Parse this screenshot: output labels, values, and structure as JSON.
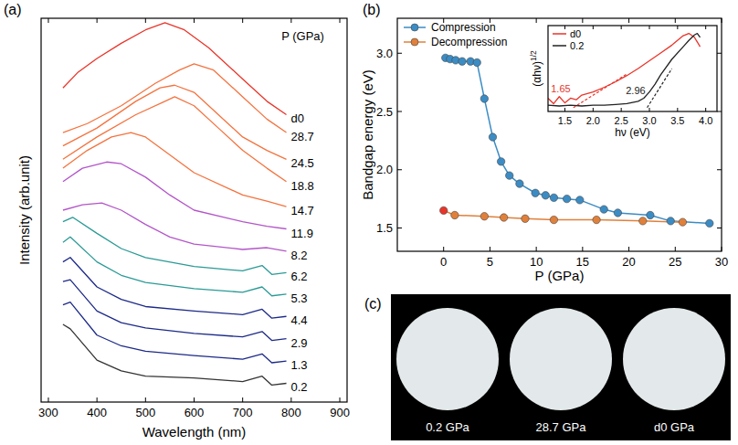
{
  "chart_data": [
    {
      "type": "line",
      "title": "(a)",
      "xlabel": "Wavelength (nm)",
      "ylabel": "Intensity (arb.unit)",
      "xlim": [
        285,
        915
      ],
      "xticks": [
        300,
        400,
        500,
        600,
        700,
        800,
        900
      ],
      "ylim": [
        0,
        43
      ],
      "tick_labels": "x",
      "annotations": [
        {
          "text": "P (GPa)",
          "x": 780,
          "y": 40.5
        }
      ],
      "series": [
        {
          "name": "0.2",
          "color": "#333333",
          "x": [
            330,
            345,
            400,
            450,
            500,
            600,
            700,
            740,
            760,
            790
          ],
          "values": [
            8.7,
            8.2,
            4.7,
            3.5,
            2.9,
            2.7,
            2.3,
            2.9,
            1.9,
            2.1
          ]
        },
        {
          "name": "1.3",
          "color": "#1c2a88",
          "x": [
            330,
            345,
            400,
            450,
            500,
            600,
            700,
            740,
            760,
            790
          ],
          "values": [
            10.9,
            11.2,
            7.5,
            6.3,
            5.7,
            5.2,
            4.8,
            5.4,
            4.4,
            4.6
          ]
        },
        {
          "name": "2.9",
          "color": "#1c2a88",
          "x": [
            330,
            345,
            400,
            450,
            500,
            600,
            700,
            740,
            760,
            790
          ],
          "values": [
            13.5,
            13.7,
            10.2,
            8.9,
            8.3,
            7.7,
            7.3,
            7.9,
            6.9,
            7.1
          ]
        },
        {
          "name": "4.4",
          "color": "#1c2a88",
          "x": [
            330,
            345,
            400,
            450,
            500,
            600,
            700,
            740,
            760,
            790
          ],
          "values": [
            15.7,
            16.2,
            12.9,
            11.5,
            10.7,
            10.2,
            9.8,
            10.4,
            9.4,
            9.6
          ]
        },
        {
          "name": "5.3",
          "color": "#2a9a96",
          "x": [
            330,
            345,
            400,
            450,
            500,
            600,
            700,
            740,
            760,
            790
          ],
          "values": [
            17.9,
            18.5,
            15.7,
            14.2,
            13.4,
            12.7,
            12.3,
            12.9,
            11.9,
            12.1
          ]
        },
        {
          "name": "6.2",
          "color": "#2a9a96",
          "x": [
            330,
            350,
            400,
            450,
            500,
            600,
            700,
            740,
            760,
            790
          ],
          "values": [
            20.2,
            20.7,
            18.9,
            17.2,
            16.2,
            15.2,
            14.7,
            15.3,
            14.3,
            14.5
          ]
        },
        {
          "name": "8.2",
          "color": "#b355c9",
          "x": [
            330,
            370,
            410,
            450,
            500,
            550,
            600,
            700,
            750,
            790
          ],
          "values": [
            21.5,
            22.1,
            22.3,
            21.5,
            19.9,
            18.5,
            17.7,
            17.1,
            17.3,
            16.9
          ]
        },
        {
          "name": "11.9",
          "color": "#b355c9",
          "x": [
            330,
            370,
            420,
            450,
            500,
            550,
            600,
            700,
            750,
            790
          ],
          "values": [
            24.7,
            26.2,
            26.9,
            26.7,
            25.2,
            23.2,
            21.5,
            20.2,
            19.7,
            19.4
          ]
        },
        {
          "name": "14.7",
          "color": "#f4733f",
          "x": [
            330,
            380,
            430,
            470,
            500,
            550,
            600,
            700,
            750,
            790
          ],
          "values": [
            26.2,
            28.2,
            29.7,
            30.2,
            29.7,
            27.7,
            25.7,
            23.2,
            22.5,
            21.9
          ]
        },
        {
          "name": "18.8",
          "color": "#f4733f",
          "x": [
            330,
            400,
            480,
            540,
            560,
            600,
            650,
            700,
            750,
            790
          ],
          "values": [
            27.2,
            29.7,
            32.2,
            33.7,
            34.2,
            33.2,
            30.7,
            28.2,
            26.2,
            24.7
          ]
        },
        {
          "name": "24.5",
          "color": "#f4733f",
          "x": [
            330,
            400,
            480,
            530,
            560,
            600,
            650,
            700,
            750,
            790
          ],
          "values": [
            28.7,
            30.7,
            33.7,
            35.2,
            35.5,
            34.7,
            32.2,
            29.7,
            28.2,
            27.2
          ]
        },
        {
          "name": "28.7",
          "color": "#f4733f",
          "x": [
            330,
            380,
            450,
            520,
            570,
            600,
            640,
            700,
            750,
            790
          ],
          "values": [
            30.2,
            31.2,
            33.2,
            35.7,
            37.2,
            37.9,
            37.2,
            34.2,
            31.7,
            30.2
          ]
        },
        {
          "name": "d0",
          "color": "#e8352a",
          "x": [
            330,
            360,
            400,
            450,
            500,
            540,
            580,
            630,
            700,
            750,
            790
          ],
          "values": [
            35.2,
            36.9,
            38.5,
            40.2,
            41.7,
            42.5,
            41.7,
            39.7,
            36.2,
            33.7,
            32.2
          ]
        }
      ]
    },
    {
      "type": "line",
      "title": "(b)",
      "xlabel": "P (GPa)",
      "ylabel": "Bandgap energy (eV)",
      "xlim": [
        -5,
        30
      ],
      "xticks": [
        0,
        5,
        10,
        15,
        20,
        25,
        30
      ],
      "ylim": [
        1.3,
        3.3
      ],
      "yticks": [
        1.5,
        {
          "value": 2,
          "label": "2.0"
        },
        2.5,
        {
          "value": 3,
          "label": "3.0"
        }
      ],
      "legend": "top-left",
      "marker": "circle",
      "series": [
        {
          "name": "Compression",
          "color": "#3b8cc4",
          "x": [
            0.2,
            0.7,
            1.3,
            2.0,
            2.9,
            3.6,
            4.4,
            5.3,
            6.2,
            7.1,
            8.2,
            9.9,
            11.0,
            11.9,
            13.3,
            14.7,
            17.3,
            18.8,
            22.3,
            24.5,
            28.7
          ],
          "values": [
            2.96,
            2.95,
            2.94,
            2.93,
            2.93,
            2.92,
            2.61,
            2.28,
            2.07,
            1.95,
            1.88,
            1.8,
            1.78,
            1.76,
            1.75,
            1.74,
            1.66,
            1.63,
            1.61,
            1.56,
            1.54
          ]
        },
        {
          "name": "Decompression",
          "color": "#e0803a",
          "colors": [
            "#e8352a",
            "#e0803a",
            "#e0803a",
            "#e0803a",
            "#e0803a",
            "#e0803a",
            "#e0803a",
            "#e0803a",
            "#e0803a"
          ],
          "x": [
            0,
            1.2,
            4.4,
            6.5,
            8.8,
            11.9,
            16.5,
            21.5,
            25.8
          ],
          "values": [
            1.65,
            1.61,
            1.6,
            1.59,
            1.58,
            1.57,
            1.57,
            1.56,
            1.55
          ]
        }
      ]
    },
    {
      "type": "line",
      "xlabel": "hν (eV)",
      "ylabel": "(αhν)1/2",
      "xlim": [
        1.2,
        4.2
      ],
      "xticks": [
        1.5,
        {
          "value": 2,
          "label": "2.0"
        },
        2.5,
        {
          "value": 3,
          "label": "3.0"
        },
        3.5,
        {
          "value": 4,
          "label": "4.0"
        }
      ],
      "ylim": [
        -0.05,
        1.05
      ],
      "tick_labels": "x",
      "legend": "top-left",
      "series": [
        {
          "name": "d0",
          "color": "#e8352a",
          "x": [
            1.2,
            1.3,
            1.4,
            1.5,
            1.6,
            1.7,
            1.8,
            2.0,
            2.2,
            2.4,
            2.6,
            2.8,
            3.0,
            3.2,
            3.4,
            3.6,
            3.7,
            3.8,
            3.9
          ],
          "values": [
            0.12,
            0.05,
            0.14,
            0.06,
            0.12,
            0.1,
            0.16,
            0.2,
            0.26,
            0.33,
            0.41,
            0.5,
            0.6,
            0.7,
            0.8,
            0.92,
            0.95,
            0.9,
            0.78
          ]
        },
        {
          "name": "0.2",
          "color": "#222222",
          "x": [
            1.2,
            1.4,
            1.6,
            1.8,
            2.0,
            2.2,
            2.4,
            2.6,
            2.8,
            2.9,
            3.0,
            3.1,
            3.2,
            3.4,
            3.6,
            3.7,
            3.8,
            3.85,
            3.9
          ],
          "values": [
            0.03,
            0.02,
            0.03,
            0.02,
            0.03,
            0.03,
            0.04,
            0.05,
            0.08,
            0.12,
            0.2,
            0.3,
            0.42,
            0.62,
            0.78,
            0.86,
            0.93,
            0.95,
            0.9
          ]
        }
      ],
      "annotations": [
        {
          "text": "1.65",
          "x": 1.6,
          "y": 0.2,
          "color": "#e8352a",
          "line_x": [
            1.65,
            2.6
          ],
          "line_y": [
            0,
            0.43
          ]
        },
        {
          "text": "2.96",
          "x": 2.93,
          "y": 0.17,
          "color": "#222222",
          "line_x": [
            2.96,
            3.4
          ],
          "line_y": [
            0,
            0.5
          ]
        }
      ]
    }
  ],
  "photo_panel": {
    "title": "(c)",
    "captions": [
      "0.2 GPa",
      "28.7 GPa",
      "d0 GPa"
    ]
  }
}
